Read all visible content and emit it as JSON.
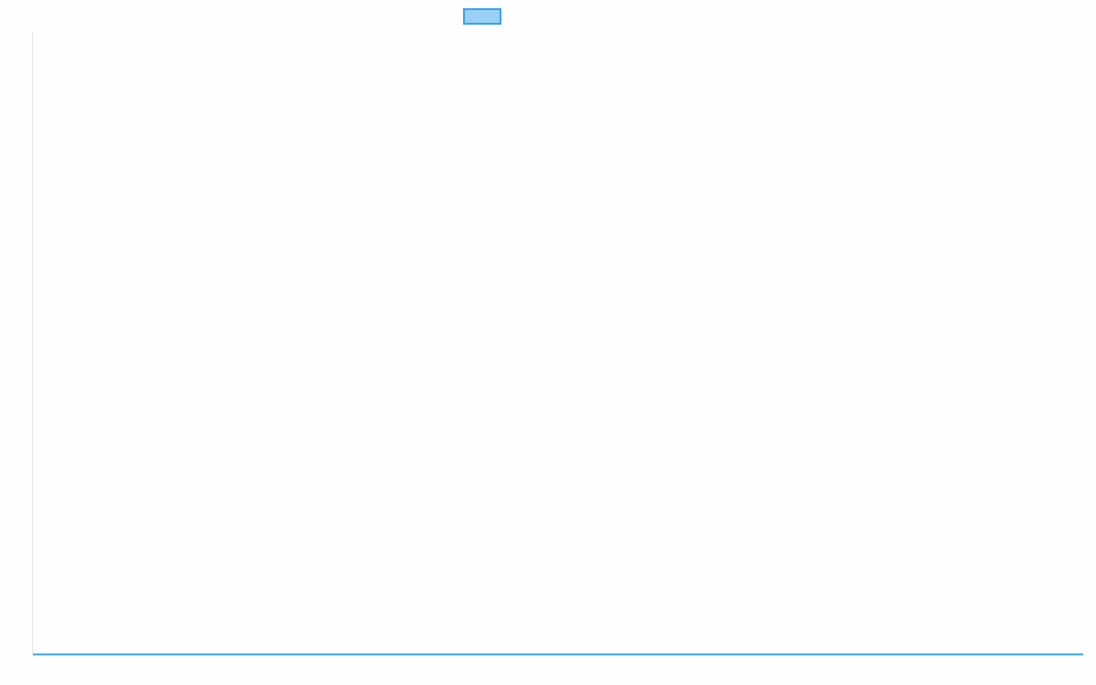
{
  "chart_data": {
    "type": "line",
    "title": "",
    "xlabel": "",
    "ylabel": "",
    "legend_placement": "top",
    "grid": false,
    "series": [
      {
        "color": "#36a2eb",
        "fill": "#9ad0f5",
        "values": []
      }
    ]
  }
}
